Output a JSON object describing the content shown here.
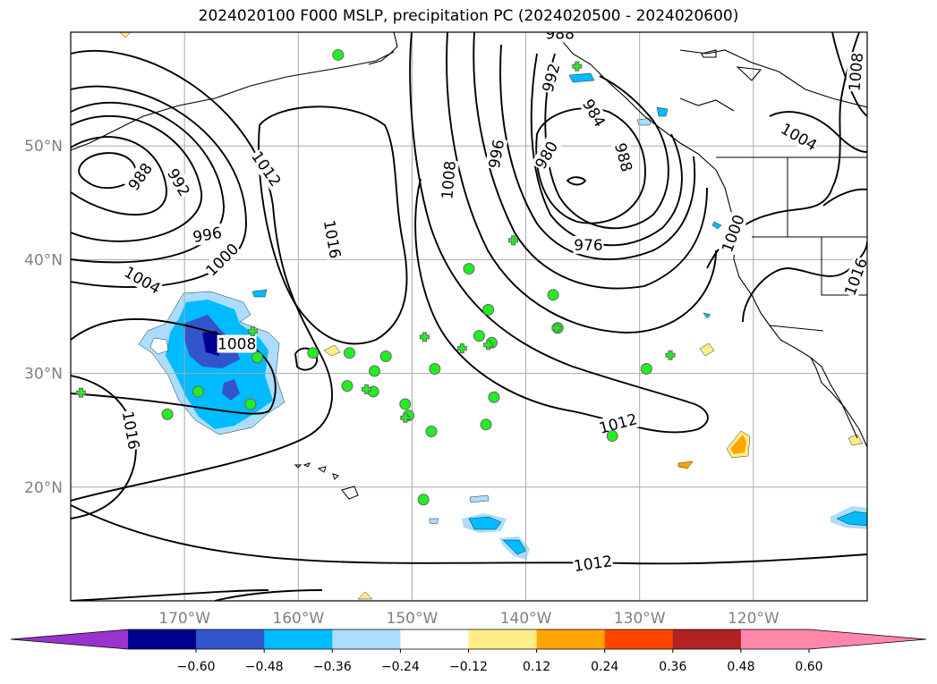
{
  "title": "2024020100 F000 MSLP, precipitation PC (2024020500 - 2024020600)",
  "map": {
    "lon_range": [
      -180,
      -110
    ],
    "lat_range": [
      10,
      60
    ],
    "lat_ticks": [
      {
        "value": 50,
        "label": "50°N"
      },
      {
        "value": 40,
        "label": "40°N"
      },
      {
        "value": 30,
        "label": "30°N"
      },
      {
        "value": 20,
        "label": "20°N"
      }
    ],
    "lon_ticks": [
      {
        "value": -170,
        "label": "170°W"
      },
      {
        "value": -160,
        "label": "160°W"
      },
      {
        "value": -150,
        "label": "150°W"
      },
      {
        "value": -140,
        "label": "140°W"
      },
      {
        "value": -130,
        "label": "130°W"
      },
      {
        "value": -120,
        "label": "120°W"
      }
    ],
    "grid": true
  },
  "isobar_labels": [
    {
      "text": "988",
      "lon": -173.9,
      "lat": 47.3,
      "rotate": -55
    },
    {
      "text": "992",
      "lon": -170.5,
      "lat": 46.8,
      "rotate": 60
    },
    {
      "text": "996",
      "lon": -168.0,
      "lat": 42.2,
      "rotate": -10
    },
    {
      "text": "1000",
      "lon": -166.7,
      "lat": 40.0,
      "rotate": -45
    },
    {
      "text": "1004",
      "lon": -173.7,
      "lat": 38.2,
      "rotate": 30
    },
    {
      "text": "1008",
      "lon": -165.4,
      "lat": 32.6,
      "rotate": 0
    },
    {
      "text": "1012",
      "lon": -162.8,
      "lat": 48.0,
      "rotate": 55
    },
    {
      "text": "1016",
      "lon": -157.0,
      "lat": 41.8,
      "rotate": 80
    },
    {
      "text": "1016",
      "lon": -174.7,
      "lat": 25.0,
      "rotate": 80
    },
    {
      "text": "1008",
      "lon": -146.8,
      "lat": 47.0,
      "rotate": -85
    },
    {
      "text": "996",
      "lon": -142.6,
      "lat": 49.3,
      "rotate": -80
    },
    {
      "text": "992",
      "lon": -137.8,
      "lat": 56.0,
      "rotate": -75
    },
    {
      "text": "980",
      "lon": -138.2,
      "lat": 49.2,
      "rotate": -60
    },
    {
      "text": "984",
      "lon": -134.0,
      "lat": 52.9,
      "rotate": 60
    },
    {
      "text": "988",
      "lon": -131.4,
      "lat": 49.0,
      "rotate": 75
    },
    {
      "text": "976",
      "lon": -134.5,
      "lat": 41.3,
      "rotate": 0
    },
    {
      "text": "988",
      "lon": -137.0,
      "lat": 59.9,
      "rotate": 0
    },
    {
      "text": "1000",
      "lon": -121.8,
      "lat": 42.3,
      "rotate": -70
    },
    {
      "text": "1004",
      "lon": -116.0,
      "lat": 50.8,
      "rotate": 30
    },
    {
      "text": "1008",
      "lon": -111.0,
      "lat": 56.5,
      "rotate": -85
    },
    {
      "text": "1016",
      "lon": -111.0,
      "lat": 38.5,
      "rotate": -70
    },
    {
      "text": "1012",
      "lon": -131.9,
      "lat": 25.6,
      "rotate": -15
    },
    {
      "text": "1012",
      "lon": -134.1,
      "lat": 13.3,
      "rotate": -8
    }
  ],
  "stations_circle": [
    [
      -156.5,
      58.0
    ],
    [
      -145.0,
      39.2
    ],
    [
      -137.6,
      36.9
    ],
    [
      -143.3,
      35.6
    ],
    [
      -144.1,
      33.3
    ],
    [
      -143.0,
      32.7
    ],
    [
      -137.2,
      34.0
    ],
    [
      -163.6,
      31.4
    ],
    [
      -158.7,
      31.8
    ],
    [
      -155.5,
      31.8
    ],
    [
      -152.3,
      31.5
    ],
    [
      -153.3,
      30.2
    ],
    [
      -148.0,
      30.4
    ],
    [
      -129.4,
      30.4
    ],
    [
      -155.7,
      28.9
    ],
    [
      -153.4,
      28.4
    ],
    [
      -168.8,
      28.4
    ],
    [
      -164.2,
      27.3
    ],
    [
      -150.6,
      27.3
    ],
    [
      -142.8,
      27.9
    ],
    [
      -150.3,
      26.3
    ],
    [
      -171.5,
      26.4
    ],
    [
      -143.5,
      25.5
    ],
    [
      -148.3,
      24.9
    ],
    [
      -132.4,
      24.5
    ],
    [
      -149.0,
      18.9
    ]
  ],
  "stations_plus": [
    [
      -135.5,
      57.0
    ],
    [
      -141.1,
      41.7
    ],
    [
      -137.3,
      34.0
    ],
    [
      -164.0,
      33.7
    ],
    [
      -148.9,
      33.2
    ],
    [
      -145.6,
      32.2
    ],
    [
      -143.3,
      32.5
    ],
    [
      -127.3,
      31.6
    ],
    [
      -154.0,
      28.6
    ],
    [
      -150.6,
      26.1
    ],
    [
      -179.1,
      28.3
    ]
  ],
  "precip_colorbar": {
    "min_color": "#9933cc",
    "max_color": "#ff88aa",
    "colors": [
      "#000090",
      "#3355cc",
      "#00bbff",
      "#aaddff",
      "#ffffff",
      "#ffee88",
      "#ffa500",
      "#ff4500",
      "#b22222",
      "#ff88aa"
    ],
    "tick_labels": [
      "−0.60",
      "−0.48",
      "−0.36",
      "−0.24",
      "−0.12",
      "0.12",
      "0.24",
      "0.36",
      "0.48",
      "0.60"
    ]
  }
}
